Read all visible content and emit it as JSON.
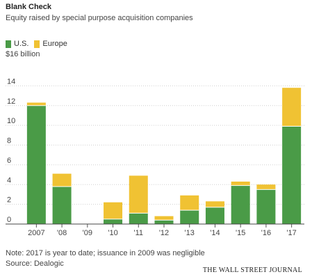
{
  "chart_data": {
    "type": "bar",
    "stacked": true,
    "title": "Blank Check",
    "subtitle": "Equity raised by special purpose acquisition companies",
    "unit_label": "$16 billion",
    "categories": [
      "2007",
      "'08",
      "'09",
      "'10",
      "'11",
      "'12",
      "'13",
      "'14",
      "'15",
      "'16",
      "'17"
    ],
    "series": [
      {
        "name": "U.S.",
        "color": "#4a9b47",
        "values": [
          12.0,
          3.8,
          0,
          0.5,
          1.1,
          0.4,
          1.4,
          1.7,
          3.9,
          3.5,
          9.9
        ]
      },
      {
        "name": "Europe",
        "color": "#f0c233",
        "values": [
          0.3,
          1.3,
          0,
          1.7,
          3.8,
          0.4,
          1.5,
          0.6,
          0.4,
          0.5,
          3.9
        ]
      }
    ],
    "ylim": [
      0,
      16
    ],
    "yticks": [
      0,
      2,
      4,
      6,
      8,
      10,
      12,
      14
    ],
    "grid": true,
    "legend": "top-left",
    "note": "Note: 2017 is year to date; issuance in 2009 was negligible",
    "source": "Source: Dealogic",
    "brand": "THE WALL STREET JOURNAL"
  }
}
